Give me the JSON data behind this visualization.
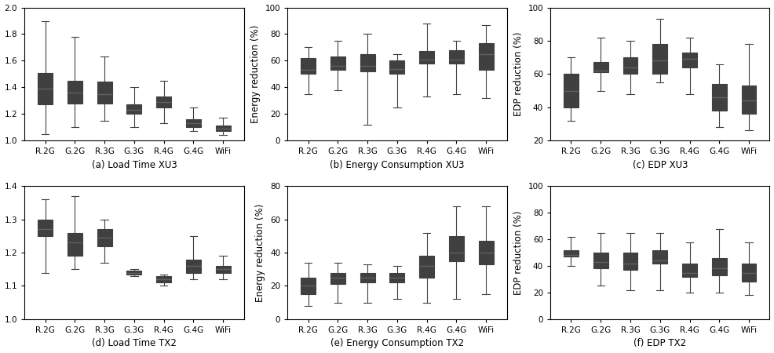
{
  "categories": [
    "R.2G",
    "G.2G",
    "R.3G",
    "G.3G",
    "R.4G",
    "G.4G",
    "WiFi"
  ],
  "subplots": {
    "a": {
      "title": "(a) Load Time XU3",
      "ylabel": "",
      "ylim": [
        1.0,
        2.0
      ],
      "yticks": [
        1.0,
        1.2,
        1.4,
        1.6,
        1.8,
        2.0
      ],
      "boxes": [
        {
          "whislo": 1.05,
          "q1": 1.27,
          "med": 1.39,
          "q3": 1.51,
          "whishi": 1.9
        },
        {
          "whislo": 1.1,
          "q1": 1.28,
          "med": 1.36,
          "q3": 1.45,
          "whishi": 1.78
        },
        {
          "whislo": 1.15,
          "q1": 1.28,
          "med": 1.35,
          "q3": 1.44,
          "whishi": 1.63
        },
        {
          "whislo": 1.1,
          "q1": 1.2,
          "med": 1.23,
          "q3": 1.27,
          "whishi": 1.4
        },
        {
          "whislo": 1.13,
          "q1": 1.25,
          "med": 1.29,
          "q3": 1.33,
          "whishi": 1.45
        },
        {
          "whislo": 1.07,
          "q1": 1.1,
          "med": 1.13,
          "q3": 1.16,
          "whishi": 1.25
        },
        {
          "whislo": 1.04,
          "q1": 1.07,
          "med": 1.09,
          "q3": 1.11,
          "whishi": 1.17
        }
      ]
    },
    "b": {
      "title": "(b) Energy Consumption XU3",
      "ylabel": "Energy reduction (%)",
      "ylim": [
        0,
        100
      ],
      "yticks": [
        0,
        20,
        40,
        60,
        80,
        100
      ],
      "boxes": [
        {
          "whislo": 35,
          "q1": 50,
          "med": 53,
          "q3": 62,
          "whishi": 70
        },
        {
          "whislo": 38,
          "q1": 53,
          "med": 56,
          "q3": 63,
          "whishi": 75
        },
        {
          "whislo": 12,
          "q1": 52,
          "med": 56,
          "q3": 65,
          "whishi": 80
        },
        {
          "whislo": 25,
          "q1": 50,
          "med": 54,
          "q3": 60,
          "whishi": 65
        },
        {
          "whislo": 33,
          "q1": 58,
          "med": 61,
          "q3": 67,
          "whishi": 88
        },
        {
          "whislo": 35,
          "q1": 58,
          "med": 61,
          "q3": 68,
          "whishi": 75
        },
        {
          "whislo": 32,
          "q1": 53,
          "med": 65,
          "q3": 73,
          "whishi": 87
        }
      ]
    },
    "c": {
      "title": "(c) EDP XU3",
      "ylabel": "EDP reduction (%)",
      "ylim": [
        20,
        100
      ],
      "yticks": [
        20,
        40,
        60,
        80,
        100
      ],
      "boxes": [
        {
          "whislo": 32,
          "q1": 40,
          "med": 50,
          "q3": 60,
          "whishi": 70
        },
        {
          "whislo": 50,
          "q1": 61,
          "med": 62,
          "q3": 67,
          "whishi": 82
        },
        {
          "whislo": 48,
          "q1": 60,
          "med": 64,
          "q3": 70,
          "whishi": 80
        },
        {
          "whislo": 55,
          "q1": 60,
          "med": 68,
          "q3": 78,
          "whishi": 93
        },
        {
          "whislo": 48,
          "q1": 64,
          "med": 69,
          "q3": 73,
          "whishi": 82
        },
        {
          "whislo": 28,
          "q1": 38,
          "med": 46,
          "q3": 54,
          "whishi": 66
        },
        {
          "whislo": 26,
          "q1": 36,
          "med": 44,
          "q3": 53,
          "whishi": 78
        }
      ]
    },
    "d": {
      "title": "(d) Load Time TX2",
      "ylabel": "",
      "ylim": [
        1.0,
        1.4
      ],
      "yticks": [
        1.0,
        1.1,
        1.2,
        1.3,
        1.4
      ],
      "boxes": [
        {
          "whislo": 1.14,
          "q1": 1.25,
          "med": 1.27,
          "q3": 1.3,
          "whishi": 1.36
        },
        {
          "whislo": 1.15,
          "q1": 1.19,
          "med": 1.23,
          "q3": 1.26,
          "whishi": 1.37
        },
        {
          "whislo": 1.17,
          "q1": 1.22,
          "med": 1.245,
          "q3": 1.27,
          "whishi": 1.3
        },
        {
          "whislo": 1.13,
          "q1": 1.135,
          "med": 1.14,
          "q3": 1.145,
          "whishi": 1.15
        },
        {
          "whislo": 1.1,
          "q1": 1.11,
          "med": 1.12,
          "q3": 1.13,
          "whishi": 1.135
        },
        {
          "whislo": 1.12,
          "q1": 1.14,
          "med": 1.16,
          "q3": 1.18,
          "whishi": 1.25
        },
        {
          "whislo": 1.12,
          "q1": 1.14,
          "med": 1.15,
          "q3": 1.16,
          "whishi": 1.19
        }
      ]
    },
    "e": {
      "title": "(e) Energy Consumption TX2",
      "ylabel": "Energy reduction (%)",
      "ylim": [
        0,
        80
      ],
      "yticks": [
        0,
        20,
        40,
        60,
        80
      ],
      "boxes": [
        {
          "whislo": 8,
          "q1": 15,
          "med": 20,
          "q3": 25,
          "whishi": 34
        },
        {
          "whislo": 10,
          "q1": 21,
          "med": 25,
          "q3": 28,
          "whishi": 34
        },
        {
          "whislo": 10,
          "q1": 22,
          "med": 25,
          "q3": 28,
          "whishi": 33
        },
        {
          "whislo": 12,
          "q1": 22,
          "med": 25,
          "q3": 28,
          "whishi": 32
        },
        {
          "whislo": 10,
          "q1": 25,
          "med": 32,
          "q3": 38,
          "whishi": 52
        },
        {
          "whislo": 12,
          "q1": 35,
          "med": 40,
          "q3": 50,
          "whishi": 68
        },
        {
          "whislo": 15,
          "q1": 33,
          "med": 40,
          "q3": 47,
          "whishi": 68
        }
      ]
    },
    "f": {
      "title": "(f) EDP TX2",
      "ylabel": "EDP reduction (%)",
      "ylim": [
        0,
        100
      ],
      "yticks": [
        0,
        20,
        40,
        60,
        80,
        100
      ],
      "boxes": [
        {
          "whislo": 40,
          "q1": 47,
          "med": 48,
          "q3": 52,
          "whishi": 62
        },
        {
          "whislo": 25,
          "q1": 38,
          "med": 43,
          "q3": 50,
          "whishi": 65
        },
        {
          "whislo": 22,
          "q1": 37,
          "med": 42,
          "q3": 50,
          "whishi": 65
        },
        {
          "whislo": 22,
          "q1": 42,
          "med": 44,
          "q3": 52,
          "whishi": 65
        },
        {
          "whislo": 20,
          "q1": 32,
          "med": 35,
          "q3": 42,
          "whishi": 58
        },
        {
          "whislo": 20,
          "q1": 33,
          "med": 38,
          "q3": 46,
          "whishi": 68
        },
        {
          "whislo": 18,
          "q1": 28,
          "med": 35,
          "q3": 42,
          "whishi": 58
        }
      ]
    }
  },
  "box_color": "#404040",
  "box_facecolor": "white",
  "median_color": "#606060",
  "whisker_color": "#404040",
  "cap_color": "#404040",
  "background_color": "white",
  "fontsize_title": 8.5,
  "fontsize_tick": 7.5,
  "fontsize_ylabel": 8.5
}
